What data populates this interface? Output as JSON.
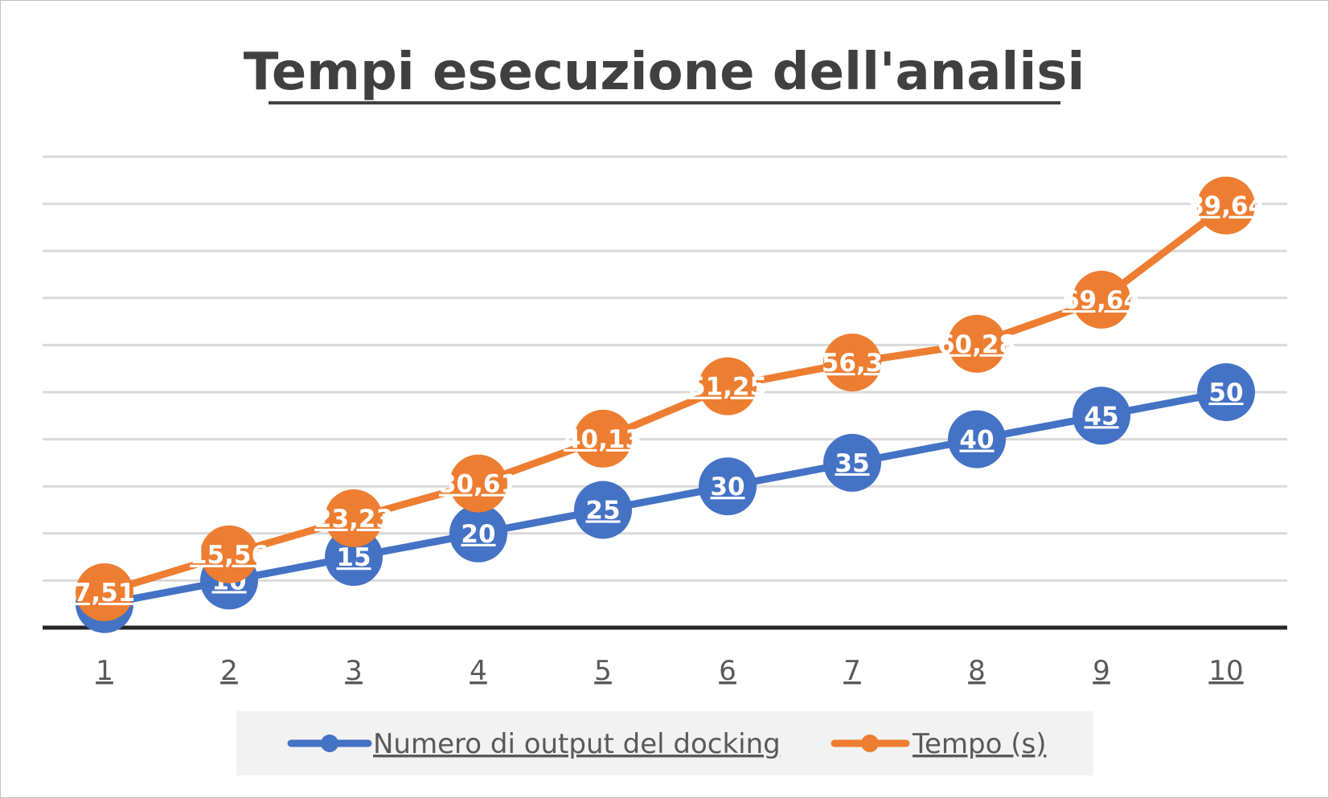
{
  "chart_data": {
    "type": "line",
    "title": "Tempi esecuzione dell'analisi",
    "xlabel": "",
    "ylabel": "",
    "categories": [
      "1",
      "2",
      "3",
      "4",
      "5",
      "6",
      "7",
      "8",
      "9",
      "10"
    ],
    "series": [
      {
        "name": "Numero di output del docking",
        "color": "#4472c4",
        "values": [
          5,
          10,
          15,
          20,
          25,
          30,
          35,
          40,
          45,
          50
        ],
        "labels": [
          "5",
          "10",
          "15",
          "20",
          "25",
          "30",
          "35",
          "40",
          "45",
          "50"
        ]
      },
      {
        "name": "Tempo (s)",
        "color": "#ed7d31",
        "values": [
          7.51,
          15.56,
          23.23,
          30.61,
          40.13,
          51.25,
          56.3,
          60.28,
          69.64,
          89.64
        ],
        "labels": [
          "7,51",
          "15,56",
          "23,23",
          "30,61",
          "40,13",
          "51,25",
          "56,3",
          "60,28",
          "69,64",
          "89,64"
        ]
      }
    ],
    "ylim": [
      0,
      100
    ],
    "y_gridline_step": 10,
    "y_tick_labels_shown": false,
    "grid": true,
    "legend_position": "bottom",
    "colors": {
      "gridline": "#d9d9d9",
      "axis": "#262626",
      "title": "#404040",
      "tick_text": "#595959",
      "legend_background": "#f2f2f2"
    }
  }
}
